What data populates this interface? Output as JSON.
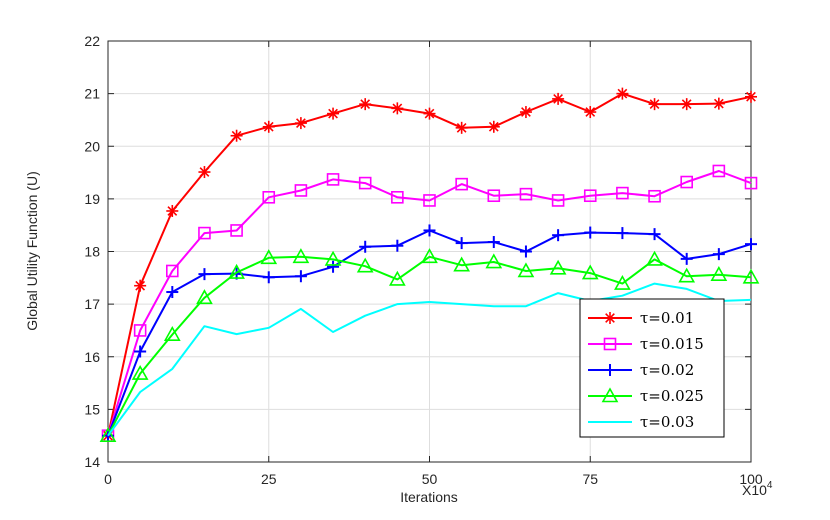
{
  "chart_data": {
    "type": "line",
    "title": "",
    "xlabel": "Iterations",
    "ylabel": "Global Utility Function (U)",
    "x_multiplier_label": "X10^4",
    "x_multiplier_base": "X10",
    "x_multiplier_exp": "4",
    "xlim": [
      0,
      100
    ],
    "ylim": [
      14,
      22
    ],
    "xticks": [
      "0",
      "25",
      "50",
      "75",
      "100"
    ],
    "yticks": [
      "14",
      "15",
      "16",
      "17",
      "18",
      "19",
      "20",
      "21",
      "22"
    ],
    "grid": true,
    "legend_position": "bottom-right",
    "x": [
      0,
      5,
      10,
      15,
      20,
      25,
      30,
      35,
      40,
      45,
      50,
      55,
      60,
      65,
      70,
      75,
      80,
      85,
      90,
      95,
      100
    ],
    "series": [
      {
        "name": "τ=0.01",
        "color": "#ff0000",
        "marker": "asterisk",
        "values": [
          14.5,
          17.35,
          18.77,
          19.51,
          20.2,
          20.37,
          20.44,
          20.62,
          20.8,
          20.72,
          20.62,
          20.35,
          20.37,
          20.65,
          20.9,
          20.65,
          21.0,
          20.8,
          20.8,
          20.81,
          20.94
        ]
      },
      {
        "name": "τ=0.015",
        "color": "#ff00ff",
        "marker": "square",
        "values": [
          14.5,
          16.5,
          17.63,
          18.35,
          18.4,
          19.03,
          19.16,
          19.37,
          19.3,
          19.03,
          18.97,
          19.28,
          19.06,
          19.09,
          18.97,
          19.06,
          19.11,
          19.05,
          19.32,
          19.53,
          19.3
        ]
      },
      {
        "name": "τ=0.02",
        "color": "#0000ff",
        "marker": "plus",
        "values": [
          14.5,
          16.1,
          17.23,
          17.57,
          17.58,
          17.51,
          17.53,
          17.71,
          18.09,
          18.11,
          18.4,
          18.16,
          18.18,
          18.0,
          18.31,
          18.36,
          18.35,
          18.33,
          17.86,
          17.95,
          18.14
        ]
      },
      {
        "name": "τ=0.025",
        "color": "#00ff00",
        "marker": "triangle",
        "values": [
          14.5,
          15.68,
          16.42,
          17.12,
          17.6,
          17.88,
          17.9,
          17.85,
          17.72,
          17.47,
          17.9,
          17.74,
          17.8,
          17.63,
          17.68,
          17.59,
          17.39,
          17.85,
          17.53,
          17.56,
          17.51
        ]
      },
      {
        "name": "τ=0.03",
        "color": "#00ffff",
        "marker": "none",
        "values": [
          14.5,
          15.33,
          15.77,
          16.58,
          16.43,
          16.55,
          16.91,
          16.47,
          16.78,
          17.0,
          17.04,
          17.0,
          16.96,
          16.96,
          17.21,
          17.06,
          17.16,
          17.39,
          17.29,
          17.06,
          17.08
        ]
      }
    ]
  }
}
